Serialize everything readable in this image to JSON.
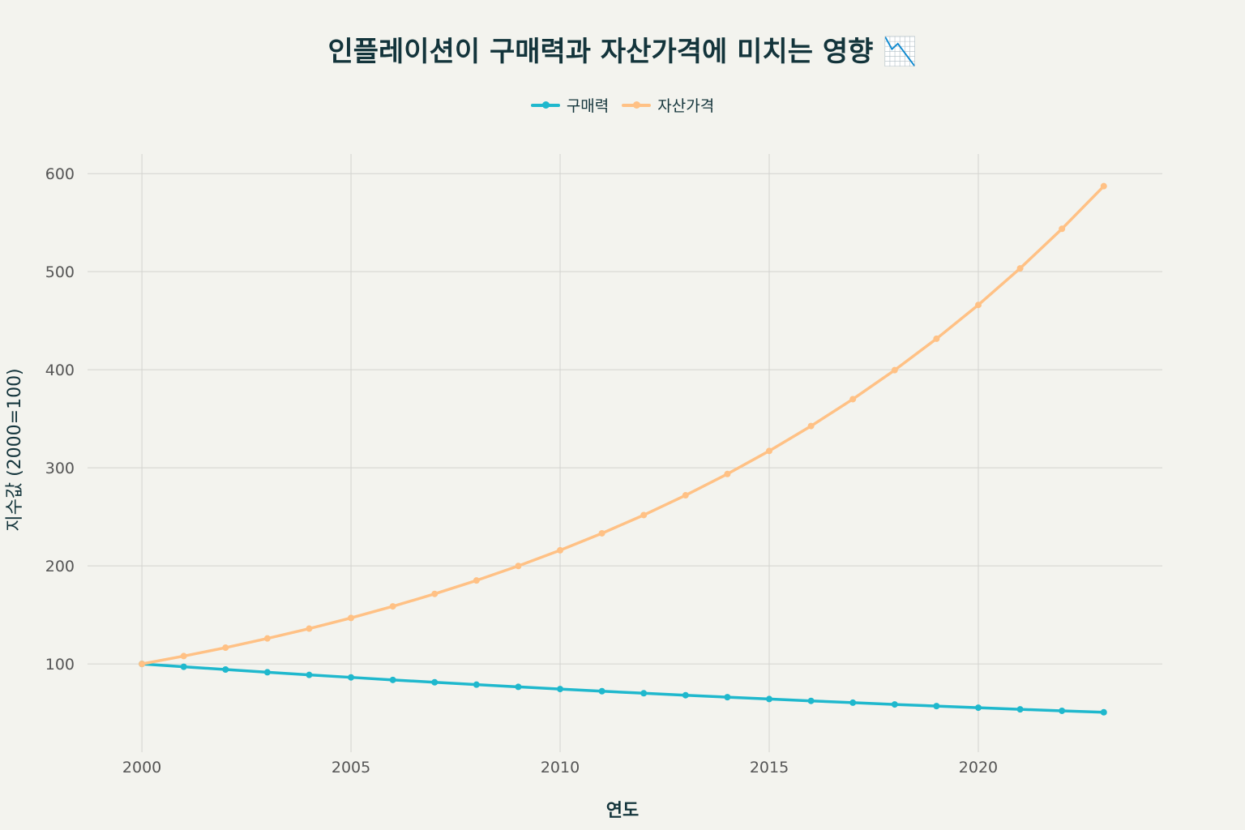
{
  "chart_data": {
    "type": "line",
    "title": "인플레이션이 구매력과 자산가격에 미치는 영향 📉",
    "xlabel": "연도",
    "ylabel": "지수값 (2000=100)",
    "x": [
      2000,
      2001,
      2002,
      2003,
      2004,
      2005,
      2006,
      2007,
      2008,
      2009,
      2010,
      2011,
      2012,
      2013,
      2014,
      2015,
      2016,
      2017,
      2018,
      2019,
      2020,
      2021,
      2022,
      2023
    ],
    "xlim": [
      1998.7,
      2024.4
    ],
    "ylim": [
      10,
      620
    ],
    "xticks": [
      2000,
      2005,
      2010,
      2015,
      2020
    ],
    "yticks": [
      100,
      200,
      300,
      400,
      500,
      600
    ],
    "grid": true,
    "legend_position": "top-center",
    "series": [
      {
        "name": "구매력",
        "color": "#1fb8cd",
        "values": [
          100.0,
          97.1,
          94.3,
          91.5,
          88.8,
          86.3,
          83.7,
          81.3,
          78.9,
          76.6,
          74.4,
          72.2,
          70.1,
          68.1,
          66.1,
          64.2,
          62.3,
          60.5,
          58.7,
          57.0,
          55.4,
          53.7,
          52.2,
          50.7
        ]
      },
      {
        "name": "자산가격",
        "color": "#ffc185",
        "values": [
          100.0,
          108.0,
          116.6,
          126.0,
          136.0,
          146.9,
          158.7,
          171.4,
          185.1,
          199.9,
          215.9,
          233.2,
          251.8,
          272.0,
          293.7,
          317.2,
          342.6,
          370.0,
          399.6,
          431.6,
          466.1,
          503.4,
          543.7,
          587.2
        ]
      }
    ]
  }
}
